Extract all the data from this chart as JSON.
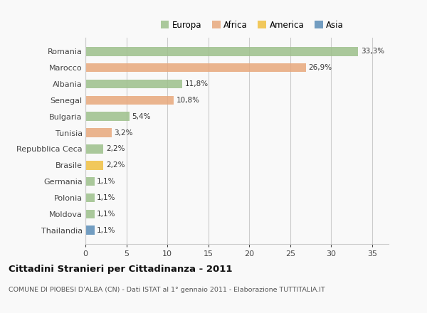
{
  "countries": [
    "Romania",
    "Marocco",
    "Albania",
    "Senegal",
    "Bulgaria",
    "Tunisia",
    "Repubblica Ceca",
    "Brasile",
    "Germania",
    "Polonia",
    "Moldova",
    "Thailandia"
  ],
  "values": [
    33.3,
    26.9,
    11.8,
    10.8,
    5.4,
    3.2,
    2.2,
    2.2,
    1.1,
    1.1,
    1.1,
    1.1
  ],
  "labels": [
    "33,3%",
    "26,9%",
    "11,8%",
    "10,8%",
    "5,4%",
    "3,2%",
    "2,2%",
    "2,2%",
    "1,1%",
    "1,1%",
    "1,1%",
    "1,1%"
  ],
  "continents": [
    "Europa",
    "Africa",
    "Europa",
    "Africa",
    "Europa",
    "Africa",
    "Europa",
    "America",
    "Europa",
    "Europa",
    "Europa",
    "Asia"
  ],
  "colors": {
    "Europa": "#9dc08b",
    "Africa": "#e8a87c",
    "America": "#f0c040",
    "Asia": "#5b8db8"
  },
  "legend_order": [
    "Europa",
    "Africa",
    "America",
    "Asia"
  ],
  "legend_colors": [
    "#9dc08b",
    "#e8a87c",
    "#f0c040",
    "#5b8db8"
  ],
  "title": "Cittadini Stranieri per Cittadinanza - 2011",
  "subtitle": "COMUNE DI PIOBESI D'ALBA (CN) - Dati ISTAT al 1° gennaio 2011 - Elaborazione TUTTITALIA.IT",
  "xlim": [
    0,
    37
  ],
  "xticks": [
    0,
    5,
    10,
    15,
    20,
    25,
    30,
    35
  ],
  "background_color": "#f9f9f9",
  "grid_color": "#cccccc"
}
